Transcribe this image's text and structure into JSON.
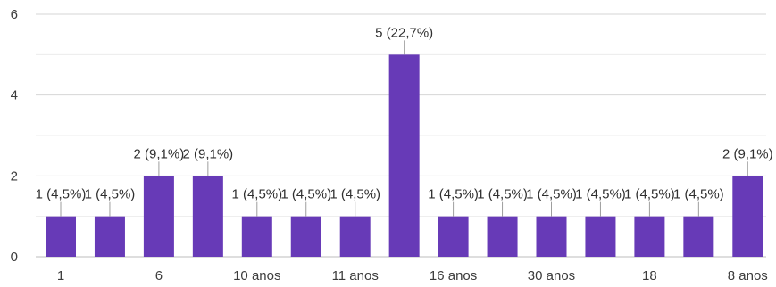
{
  "chart_data": {
    "type": "bar",
    "color": "#673ab7",
    "grid": true,
    "ylim": [
      0,
      6
    ],
    "yticks": [
      "0",
      "2",
      "4",
      "6"
    ],
    "values": [
      1,
      1,
      2,
      2,
      1,
      1,
      1,
      5,
      1,
      1,
      1,
      1,
      1,
      1,
      2
    ],
    "data_labels": [
      "1 (4,5%)",
      "1 (4,5%)",
      "2 (9,1%)",
      "2 (9,1%)",
      "1 (4,5%)",
      "1 (4,5%)",
      "1 (4,5%)",
      "5 (22,7%)",
      "1 (4,5%)",
      "1 (4,5%)",
      "1 (4,5%)",
      "1 (4,5%)",
      "1 (4,5%)",
      "1 (4,5%)",
      "2 (9,1%)"
    ],
    "xtick_labels": [
      "1",
      "6",
      "10 anos",
      "11 anos",
      "16 anos",
      "30 anos",
      "18",
      "8 anos"
    ],
    "xtick_bar_index": [
      0,
      2,
      4,
      6,
      8,
      10,
      12,
      14
    ]
  }
}
